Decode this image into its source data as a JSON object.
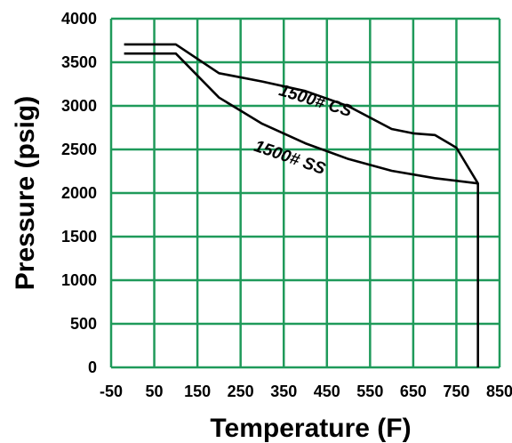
{
  "chart_data": {
    "type": "line",
    "xlabel": "Temperature (F)",
    "ylabel": "Pressure (psig)",
    "xlim": [
      -50,
      850
    ],
    "ylim": [
      0,
      4000
    ],
    "x_ticks": [
      -50,
      50,
      150,
      250,
      350,
      450,
      550,
      650,
      750,
      850
    ],
    "y_ticks": [
      0,
      500,
      1000,
      1500,
      2000,
      2500,
      3000,
      3500,
      4000
    ],
    "x_tick_labels": [
      "-50",
      "50",
      "150",
      "250",
      "350",
      "450",
      "550",
      "650",
      "750",
      "850"
    ],
    "y_tick_labels": [
      "0",
      "500",
      "1000",
      "1500",
      "2000",
      "2500",
      "3000",
      "3500",
      "4000"
    ],
    "grid": true,
    "colors": {
      "grid": "#1f9a5a",
      "line": "#000000"
    },
    "series": [
      {
        "name": "1500# CS",
        "x": [
          -20,
          100,
          200,
          300,
          400,
          500,
          600,
          650,
          700,
          750,
          800,
          800
        ],
        "y": [
          3705,
          3705,
          3375,
          3280,
          3170,
          2995,
          2735,
          2685,
          2665,
          2520,
          2110,
          0
        ]
      },
      {
        "name": "1500# SS",
        "x": [
          -20,
          100,
          200,
          300,
          400,
          500,
          600,
          700,
          800
        ],
        "y": [
          3600,
          3600,
          3095,
          2795,
          2570,
          2390,
          2255,
          2170,
          2110
        ]
      }
    ],
    "annotations": [
      {
        "text": "1500# CS",
        "x": 420,
        "y": 3000,
        "rotation": 17
      },
      {
        "text": "1500# SS",
        "x": 360,
        "y": 2350,
        "rotation": 19
      }
    ]
  }
}
